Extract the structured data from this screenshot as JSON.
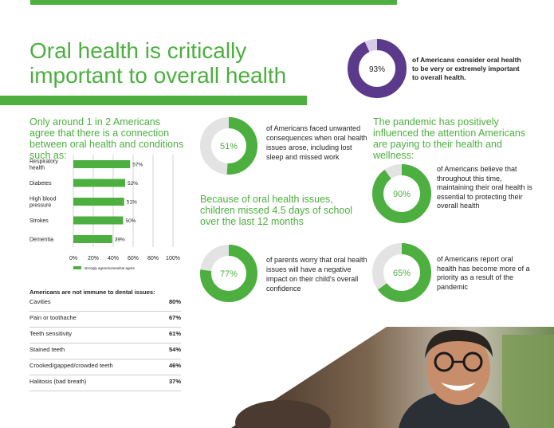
{
  "headline": {
    "line1": "Oral health is critically",
    "line2": "important to overall health"
  },
  "hero_stat": {
    "value": "93%",
    "percent": 93,
    "text": "of Americans consider oral health to be very or extremely important to overall health."
  },
  "connection": {
    "heading": "Only around 1 in 2 Americans agree that there is a connection between oral health and conditions such as:"
  },
  "chart_data": {
    "type": "bar",
    "orientation": "horizontal",
    "categories": [
      "Respiratory health",
      "Diabetes",
      "High blood pressure",
      "Strokes",
      "Dementia"
    ],
    "category_lines": [
      [
        "Respiratory",
        "health"
      ],
      [
        "Diabetes"
      ],
      [
        "High blood",
        "pressure"
      ],
      [
        "Strokes"
      ],
      [
        "Dementia"
      ]
    ],
    "values": [
      57,
      52,
      51,
      50,
      39
    ],
    "value_labels": [
      "57%",
      "52%",
      "51%",
      "50%",
      "39%"
    ],
    "xlim": [
      0,
      100
    ],
    "xticks": [
      "0%",
      "20%",
      "40%",
      "60%",
      "80%",
      "100%"
    ],
    "grid": true,
    "legend": {
      "position": "bottom",
      "entries": [
        "strongly agree/somewhat agree"
      ]
    },
    "bar_color": "#4caf3f"
  },
  "issues": {
    "heading": "Americans are not immune to dental issues:",
    "rows": [
      {
        "name": "Cavities",
        "value": "80%"
      },
      {
        "name": "Pain or toothache",
        "value": "67%"
      },
      {
        "name": "Teeth sensitivity",
        "value": "61%"
      },
      {
        "name": "Stained teeth",
        "value": "54%"
      },
      {
        "name": "Crooked/gapped/crowded teeth",
        "value": "46%"
      },
      {
        "name": "Halitosis (bad breath)",
        "value": "37%"
      }
    ]
  },
  "stat_51": {
    "value": "51%",
    "percent": 51,
    "text": "of Americans faced unwanted consequences when oral health issues arose, including lost sleep and missed work"
  },
  "school": {
    "heading": "Because of oral health issues, children missed 4.5 days of school over the last 12 months"
  },
  "stat_77": {
    "value": "77%",
    "percent": 77,
    "text": "of parents worry that oral health issues will have a negative impact on their child's overall confidence"
  },
  "pandemic": {
    "heading": "The pandemic has positively influenced the attention Americans are paying to their health and wellness:"
  },
  "stat_90": {
    "value": "90%",
    "percent": 90,
    "text": "of Americans believe that throughout this time, maintaining their oral health is essential to protecting their overall health"
  },
  "stat_65": {
    "value": "65%",
    "percent": 65,
    "text": "of Americans report oral health has become more of a priority as a result of the pandemic"
  },
  "colors": {
    "green": "#4caf3f",
    "purple": "#5b3a8c",
    "light_purple": "#d7cde8",
    "grey": "#e3e3e3"
  }
}
